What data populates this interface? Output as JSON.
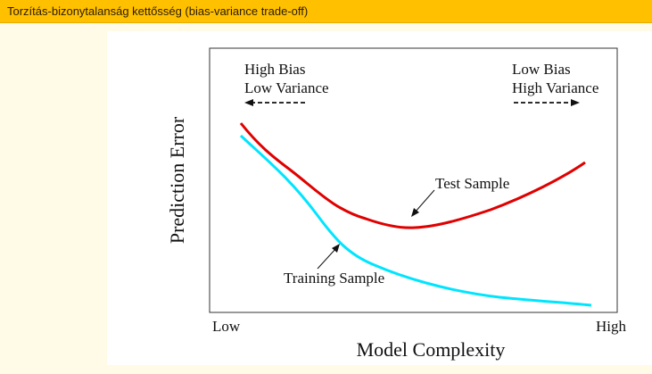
{
  "slide": {
    "title": "Torzítás-bizonytalanság kettősség (bias-variance trade-off)"
  },
  "diagram": {
    "y_axis_label": "Prediction Error",
    "x_axis_label": "Model Complexity",
    "x_tick_low": "Low",
    "x_tick_high": "High",
    "left_annotation_line1": "High Bias",
    "left_annotation_line2": "Low Variance",
    "right_annotation_line1": "Low Bias",
    "right_annotation_line2": "High Variance",
    "test_curve_label": "Test Sample",
    "training_curve_label": "Training Sample",
    "test_curve_color": "#e00000",
    "training_curve_color": "#00e5ff"
  }
}
